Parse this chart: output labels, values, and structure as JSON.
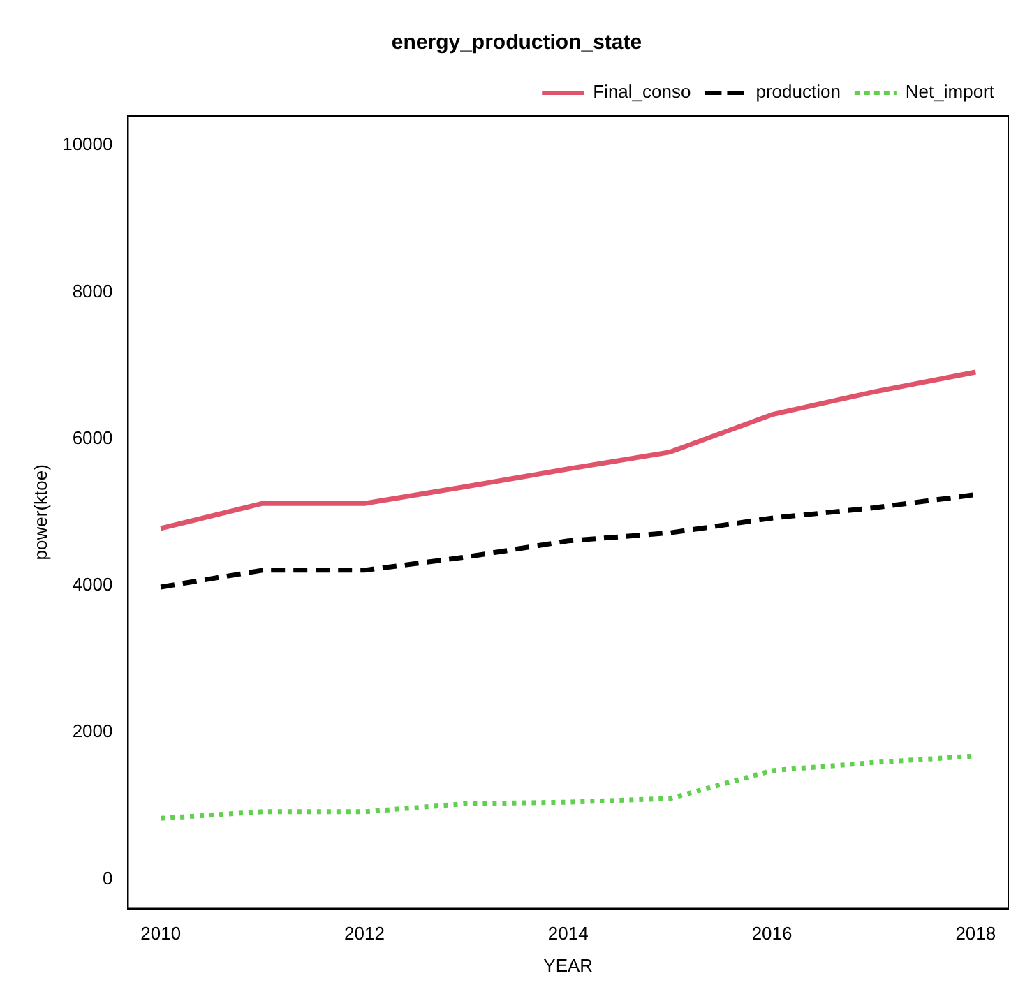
{
  "chart_data": {
    "type": "line",
    "title": "energy_production_state",
    "xlabel": "YEAR",
    "ylabel": "power(ktoe)",
    "x": [
      2010,
      2011,
      2012,
      2013,
      2014,
      2015,
      2016,
      2017,
      2018
    ],
    "series": [
      {
        "name": "Final_conso",
        "color": "#df536b",
        "line_style": "solid",
        "values": [
          4780,
          5120,
          5120,
          5350,
          5590,
          5820,
          6330,
          6640,
          6910
        ]
      },
      {
        "name": "production",
        "color": "#000000",
        "line_style": "dashed",
        "values": [
          3980,
          4210,
          4210,
          4390,
          4610,
          4720,
          4920,
          5060,
          5240
        ]
      },
      {
        "name": "Net_import",
        "color": "#61d04f",
        "line_style": "dotted",
        "values": [
          830,
          920,
          920,
          1030,
          1050,
          1100,
          1480,
          1590,
          1680
        ]
      }
    ],
    "xlim": [
      2009.68,
      2018.32
    ],
    "xticks": [
      2010,
      2012,
      2014,
      2016,
      2018
    ],
    "ylim": [
      -400,
      10400
    ],
    "yticks": [
      0,
      2000,
      4000,
      6000,
      8000,
      10000
    ],
    "grid": false,
    "legend": "top right",
    "marker": "none"
  }
}
